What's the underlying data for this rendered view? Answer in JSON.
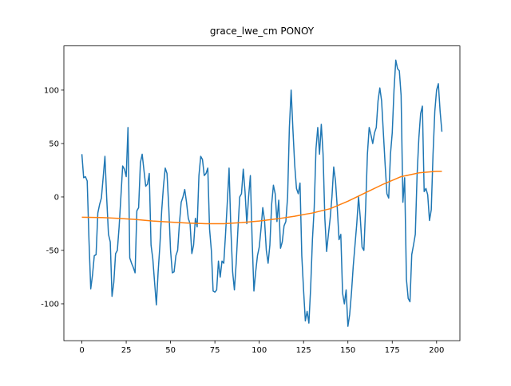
{
  "chart_data": {
    "type": "line",
    "title": "grace_lwe_cm PONOY",
    "xlim": [
      -10.15,
      213.15
    ],
    "ylim": [
      -134.5,
      141.3
    ],
    "xticks": [
      0,
      25,
      50,
      75,
      100,
      125,
      150,
      175,
      200
    ],
    "yticks": [
      -100,
      -50,
      0,
      50,
      100
    ],
    "series": [
      {
        "color": "#1f77b4",
        "x": [
          0,
          1,
          2,
          3,
          4,
          5,
          6,
          7,
          8,
          9,
          10,
          11,
          12,
          13,
          14,
          15,
          16,
          17,
          18,
          19,
          20,
          21,
          22,
          23,
          24,
          25,
          26,
          27,
          28,
          29,
          30,
          31,
          32,
          33,
          34,
          35,
          36,
          37,
          38,
          39,
          40,
          41,
          42,
          43,
          44,
          45,
          46,
          47,
          48,
          49,
          50,
          51,
          52,
          53,
          54,
          55,
          56,
          57,
          58,
          59,
          60,
          61,
          62,
          63,
          64,
          65,
          66,
          67,
          68,
          69,
          70,
          71,
          72,
          73,
          74,
          75,
          76,
          77,
          78,
          79,
          80,
          81,
          82,
          83,
          84,
          85,
          86,
          87,
          88,
          89,
          90,
          91,
          92,
          93,
          94,
          95,
          96,
          97,
          98,
          99,
          100,
          101,
          102,
          103,
          104,
          105,
          106,
          107,
          108,
          109,
          110,
          111,
          112,
          113,
          114,
          115,
          116,
          117,
          118,
          119,
          120,
          121,
          122,
          123,
          124,
          125,
          126,
          127,
          128,
          129,
          130,
          131,
          132,
          133,
          134,
          135,
          136,
          137,
          138,
          139,
          140,
          141,
          142,
          143,
          144,
          145,
          146,
          147,
          148,
          149,
          150,
          151,
          152,
          153,
          154,
          155,
          156,
          157,
          158,
          159,
          160,
          161,
          162,
          163,
          164,
          165,
          166,
          167,
          168,
          169,
          170,
          171,
          172,
          173,
          174,
          175,
          176,
          177,
          178,
          179,
          180,
          181,
          182,
          183,
          184,
          185,
          186,
          187,
          188,
          189,
          190,
          191,
          192,
          193,
          194,
          195,
          196,
          197,
          198,
          199,
          200,
          201,
          202,
          203
        ],
        "values": [
          40,
          18,
          19,
          15,
          -40,
          -86,
          -73,
          -55,
          -54,
          -15,
          -7,
          -1,
          18,
          38,
          -1,
          -35,
          -42,
          -93,
          -80,
          -53,
          -50,
          -28,
          0,
          29,
          26,
          19,
          65,
          -57,
          -62,
          -66,
          -71,
          -13,
          -10,
          32,
          40,
          25,
          10,
          12,
          22,
          -45,
          -58,
          -80,
          -101,
          -70,
          -45,
          -13,
          10,
          27,
          22,
          -10,
          -50,
          -71,
          -70,
          -55,
          -50,
          -25,
          -5,
          0,
          7,
          -5,
          -20,
          -25,
          -53,
          -45,
          -20,
          -28,
          20,
          38,
          35,
          20,
          22,
          27,
          -30,
          -50,
          -88,
          -89,
          -87,
          -60,
          -75,
          -60,
          -62,
          -35,
          -5,
          27,
          -30,
          -70,
          -87,
          -62,
          -30,
          0,
          3,
          26,
          5,
          -25,
          0,
          20,
          -40,
          -88,
          -70,
          -55,
          -47,
          -30,
          -10,
          -22,
          -50,
          -62,
          -45,
          -7,
          11,
          3,
          -23,
          -3,
          -48,
          -42,
          -27,
          -23,
          0,
          65,
          100,
          63,
          30,
          8,
          3,
          13,
          -55,
          -87,
          -116,
          -107,
          -118,
          -85,
          -40,
          -10,
          45,
          65,
          40,
          68,
          40,
          -20,
          -51,
          -35,
          -20,
          0,
          28,
          15,
          -10,
          -40,
          -35,
          -90,
          -100,
          -87,
          -121,
          -110,
          -90,
          -65,
          -45,
          -25,
          0,
          -20,
          -47,
          -50,
          -10,
          40,
          65,
          58,
          50,
          60,
          65,
          90,
          102,
          90,
          60,
          30,
          3,
          -1,
          40,
          60,
          100,
          128,
          120,
          118,
          95,
          -5,
          18,
          -77,
          -95,
          -98,
          -54,
          -45,
          -35,
          20,
          55,
          78,
          85,
          5,
          8,
          2,
          -22,
          -12,
          40,
          80,
          100,
          106,
          80,
          61
        ]
      },
      {
        "color": "#ff7f0e",
        "x": [
          0,
          10,
          20,
          30,
          40,
          50,
          60,
          70,
          80,
          90,
          100,
          110,
          120,
          130,
          140,
          150,
          160,
          170,
          180,
          190,
          200,
          203
        ],
        "values": [
          -19,
          -19.2,
          -20,
          -21,
          -22.5,
          -23.5,
          -24.5,
          -25,
          -25,
          -24,
          -22.5,
          -20.5,
          -18,
          -15,
          -11,
          -4,
          4,
          12,
          19,
          22.5,
          24,
          24
        ]
      }
    ]
  }
}
